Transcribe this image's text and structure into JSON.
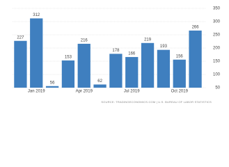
{
  "chart_data": {
    "type": "bar",
    "categories": [
      null,
      "Jan 2019",
      null,
      null,
      "Apr 2019",
      null,
      null,
      "Jul 2019",
      null,
      null,
      "Oct 2019",
      null
    ],
    "values": [
      227,
      312,
      56,
      153,
      216,
      62,
      178,
      166,
      219,
      193,
      156,
      266
    ],
    "color": "#3f7fbf",
    "ylim": [
      50,
      350
    ],
    "yticks": [
      50,
      100,
      150,
      200,
      250,
      300,
      350
    ],
    "grid": true,
    "source": "SOURCE: TRADINGECONOMICS.COM | U.S. BUREAU OF LABOR STATISTICS"
  }
}
